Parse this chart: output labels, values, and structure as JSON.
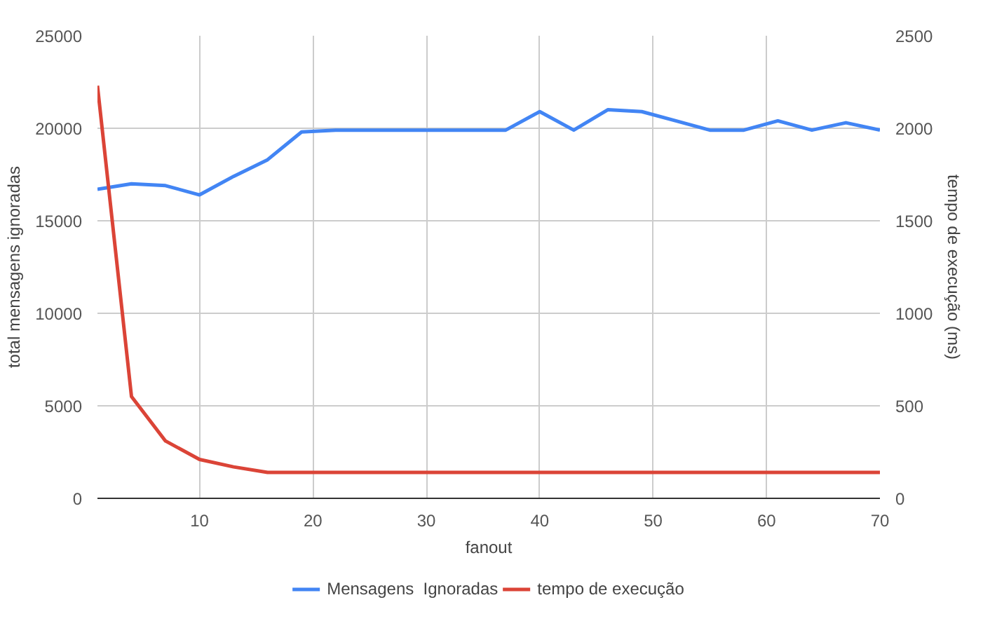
{
  "chart_data": {
    "type": "line",
    "xlabel": "fanout",
    "ylabel": "total mensagens ignoradas",
    "y2label": "tempo de execução (ms)",
    "x": [
      1,
      4,
      7,
      10,
      13,
      16,
      19,
      22,
      25,
      28,
      31,
      34,
      37,
      40,
      43,
      46,
      49,
      52,
      55,
      58,
      61,
      64,
      67,
      70
    ],
    "series": [
      {
        "name": "Mensagens  Ignoradas",
        "color": "#4285f4",
        "values": [
          16700,
          17000,
          16900,
          16400,
          17400,
          18300,
          19800,
          19900,
          19900,
          19900,
          19900,
          19900,
          19900,
          20900,
          19900,
          21000,
          20900,
          20400,
          19900,
          19900,
          20400,
          19900,
          20300,
          19900
        ]
      },
      {
        "name": "tempo de execução",
        "color": "#db4437",
        "axis": "y2",
        "values": [
          2230,
          550,
          310,
          210,
          170,
          140,
          140,
          140,
          140,
          140,
          140,
          140,
          140,
          140,
          140,
          140,
          140,
          140,
          140,
          140,
          140,
          140,
          140,
          140
        ]
      }
    ],
    "xlim": [
      1,
      70
    ],
    "xticks": [
      10,
      20,
      30,
      40,
      50,
      60,
      70
    ],
    "ylim": [
      0,
      25000
    ],
    "yticks": [
      0,
      5000,
      10000,
      15000,
      20000,
      25000
    ],
    "y2lim": [
      0,
      2500
    ],
    "y2ticks": [
      0,
      500,
      1000,
      1500,
      2000,
      2500
    ],
    "grid": true,
    "legend": "bottom",
    "line_style": "solid",
    "marker": "none"
  }
}
